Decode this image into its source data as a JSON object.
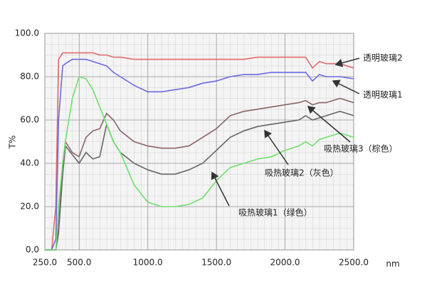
{
  "chart_data": {
    "type": "line",
    "y_label": "T%",
    "x_label": "nm",
    "x": [
      250,
      300,
      330,
      350,
      380,
      400,
      450,
      500,
      550,
      600,
      650,
      700,
      750,
      800,
      900,
      1000,
      1100,
      1200,
      1300,
      1400,
      1500,
      1600,
      1700,
      1800,
      1900,
      2000,
      2100,
      2150,
      2200,
      2250,
      2300,
      2400,
      2500
    ],
    "series": [
      {
        "name": "透明玻璃2",
        "color": "#e06a6a",
        "values": [
          0,
          0,
          20,
          88,
          91,
          91,
          91,
          91,
          91,
          91,
          90,
          90,
          89,
          89,
          88,
          88,
          88,
          88,
          88,
          88,
          88,
          88,
          88,
          89,
          89,
          89,
          89,
          89,
          84,
          87,
          86,
          86,
          84
        ]
      },
      {
        "name": "透明玻璃1",
        "color": "#6a6ae0",
        "values": [
          0,
          0,
          5,
          60,
          85,
          86,
          88,
          88,
          88,
          87,
          86,
          85,
          82,
          80,
          76,
          73,
          73,
          74,
          75,
          77,
          78,
          80,
          81,
          81,
          82,
          82,
          82,
          82,
          78,
          81,
          80,
          80,
          79
        ]
      },
      {
        "name": "吸热玻璃3（棕色）",
        "color": "#8a6468",
        "values": [
          0,
          0,
          0,
          10,
          40,
          50,
          45,
          43,
          52,
          55,
          56,
          63,
          60,
          55,
          50,
          48,
          47,
          47,
          48,
          52,
          56,
          62,
          64,
          65,
          66,
          67,
          68,
          69,
          67,
          68,
          68,
          70,
          68
        ]
      },
      {
        "name": "吸热玻璃2（灰色）",
        "color": "#666666",
        "values": [
          0,
          0,
          0,
          8,
          35,
          48,
          44,
          40,
          45,
          42,
          43,
          58,
          50,
          45,
          40,
          37,
          35,
          35,
          37,
          40,
          46,
          52,
          55,
          57,
          58,
          59,
          60,
          62,
          60,
          61,
          62,
          64,
          62
        ]
      },
      {
        "name": "吸热玻璃1（绿色）",
        "color": "#6ee06e",
        "values": [
          0,
          0,
          0,
          20,
          40,
          50,
          70,
          80,
          79,
          74,
          66,
          58,
          50,
          45,
          30,
          22,
          20,
          20,
          21,
          24,
          32,
          38,
          40,
          42,
          43,
          46,
          48,
          50,
          48,
          51,
          52,
          54,
          52
        ]
      }
    ],
    "xlim": [
      250,
      2500
    ],
    "ylim": [
      0,
      100
    ],
    "xticks": [
      {
        "value": 250,
        "label": "250.0"
      },
      {
        "value": 500,
        "label": "500.0"
      },
      {
        "value": 1000,
        "label": "1000.0"
      },
      {
        "value": 1500,
        "label": "1500.0"
      },
      {
        "value": 2000,
        "label": "2000.0"
      },
      {
        "value": 2500,
        "label": "2500.0"
      }
    ],
    "yticks": [
      {
        "value": 0,
        "label": "0.0"
      },
      {
        "value": 20,
        "label": "20.0"
      },
      {
        "value": 40,
        "label": "40.0"
      },
      {
        "value": 60,
        "label": "60.0"
      },
      {
        "value": 80,
        "label": "80.0"
      },
      {
        "value": 100,
        "label": "100.0"
      }
    ],
    "grid": true
  }
}
